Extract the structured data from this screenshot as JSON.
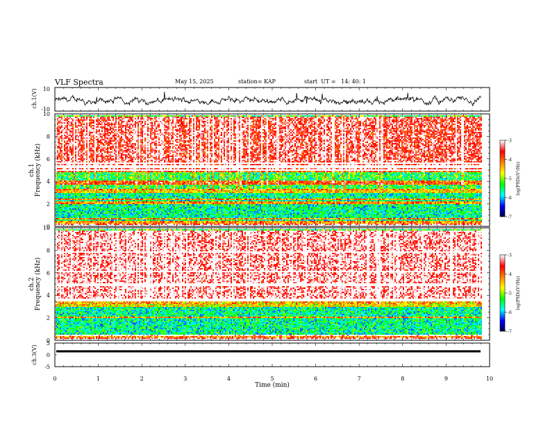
{
  "header": {
    "title": "VLF Spectra",
    "date": "May 15, 2025",
    "station": "station= KAP",
    "start": "start  UT =   14: 40: 1"
  },
  "colors": {
    "background": "#ffffff",
    "trace": "#000000",
    "colormap": [
      "#000040",
      "#0000ff",
      "#00ffff",
      "#00ff00",
      "#ffff00",
      "#ff8000",
      "#ff0000",
      "#ffffff"
    ]
  },
  "chart_data": [
    {
      "type": "line",
      "name": "ch.1 waveform",
      "ylabel": "ch.1(V)",
      "ylim": [
        -10,
        10
      ],
      "yticks": [
        "10",
        "-10"
      ],
      "xlim": [
        0,
        10
      ],
      "series": [
        {
          "name": "ch.1",
          "description_values": "noise trace around -1 V, amplitude ~6 V"
        }
      ]
    },
    {
      "type": "heatmap",
      "name": "ch.1 spectrogram",
      "ylabel_line1": "ch.1",
      "ylabel_line2": "Frequency (kHz)",
      "ylim": [
        0,
        10
      ],
      "yticks": [
        "0",
        "2",
        "4",
        "6",
        "8",
        "10"
      ],
      "xlim": [
        0,
        9.8
      ],
      "colorbar": {
        "label": "log(PSD)(V²/Hz)",
        "ticks": [
          "-3",
          "-4",
          "-5",
          "-6",
          "-7"
        ],
        "range": [
          -7,
          -3
        ]
      },
      "bands_khz": [
        [
          0,
          0.2,
          -3.3
        ],
        [
          0.2,
          0.5,
          -4.2
        ],
        [
          0.5,
          3.0,
          -5.6
        ],
        [
          3.0,
          3.3,
          -4.5
        ],
        [
          3.3,
          5.0,
          -5.6
        ],
        [
          5.0,
          10.0,
          -3.6
        ]
      ],
      "lines_khz": [
        0.6,
        2.1,
        2.4,
        3.8,
        4.0,
        5.0,
        5.4,
        5.7
      ]
    },
    {
      "type": "heatmap",
      "name": "ch.2 spectrogram",
      "ylabel_line1": "ch.2",
      "ylabel_line2": "Frequency (kHz)",
      "ylim": [
        0,
        10
      ],
      "yticks": [
        "0",
        "2",
        "4",
        "6",
        "8",
        "10"
      ],
      "xlim": [
        0,
        9.8
      ],
      "colorbar": {
        "label": "log(PSD)(V²/Hz)",
        "ticks": [
          "-3",
          "-4",
          "-5",
          "-6",
          "-7"
        ],
        "range": [
          -7,
          -3
        ]
      },
      "bands_khz": [
        [
          0,
          0.2,
          -3.3
        ],
        [
          0.2,
          0.5,
          -4.2
        ],
        [
          0.5,
          3.0,
          -5.6
        ],
        [
          3.0,
          3.5,
          -4.6
        ],
        [
          3.5,
          10.0,
          -3.3
        ]
      ],
      "lines_khz": [
        0.4,
        2.0,
        3.6,
        5.0,
        6.2,
        8.0
      ]
    },
    {
      "type": "line",
      "name": "ch.3 waveform",
      "ylabel": "ch.3(V)",
      "ylim": [
        -5,
        5
      ],
      "yticks": [
        "5",
        "0",
        "-5"
      ],
      "xlim": [
        0,
        10
      ],
      "series": [
        {
          "name": "ch.3",
          "level": 1.5,
          "band_halfwidth": 0.45
        }
      ]
    }
  ],
  "xaxis": {
    "label": "Time (min)",
    "ticks": [
      "0",
      "1",
      "2",
      "3",
      "4",
      "5",
      "6",
      "7",
      "8",
      "9",
      "10"
    ]
  }
}
